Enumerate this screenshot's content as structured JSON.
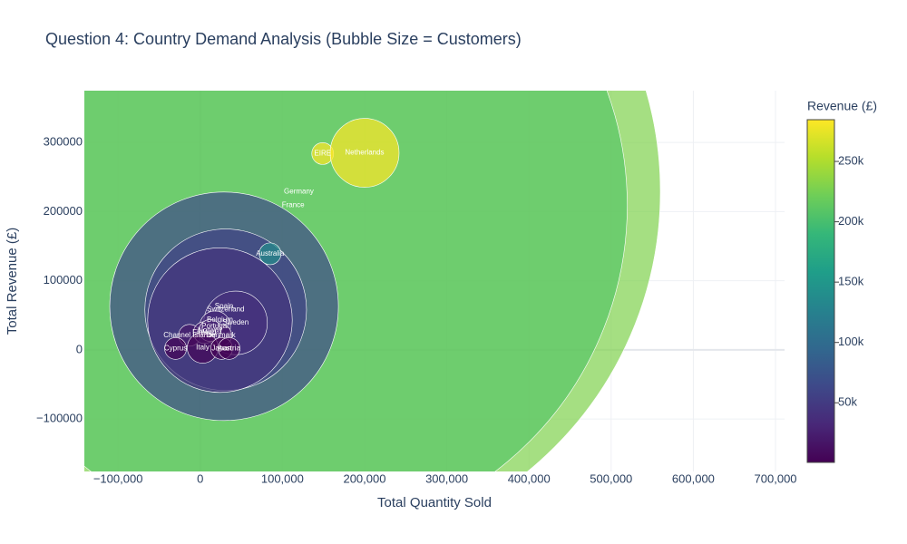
{
  "chart_data": {
    "type": "scatter",
    "title": "Question 4: Country Demand Analysis (Bubble Size = Customers)",
    "x_label": "Total Quantity Sold",
    "y_label": "Total Revenue (£)",
    "colorbar_title": "Revenue (£)",
    "labels": [
      "Germany",
      "France",
      "Spain",
      "Switzerland",
      "Belgium",
      "Sweden",
      "Portugal",
      "Channel Islands",
      "Denmark",
      "Finland",
      "Norway",
      "Italy",
      "Japan",
      "Cyprus",
      "Austria",
      "Australia",
      "EIRE",
      "Netherlands"
    ],
    "x": [
      120000,
      113000,
      29000,
      31000,
      24000,
      43000,
      18000,
      -13000,
      25000,
      5000,
      12000,
      3000,
      26000,
      -30000,
      35000,
      85000,
      149000,
      200000
    ],
    "y": [
      229000,
      209000,
      63000,
      58000,
      43000,
      39000,
      34000,
      21000,
      21000,
      25000,
      28000,
      3000,
      2000,
      2000,
      2000,
      139000,
      284000,
      285000
    ],
    "sizes": [
      110,
      94,
      11,
      5.5,
      4.4,
      0.85,
      0.2,
      0.1,
      0.1,
      0.1,
      0.1,
      0.2,
      0.1,
      0.1,
      0.1,
      0.1,
      0.1,
      1
    ],
    "xlim": [
      -141000,
      711000
    ],
    "ylim": [
      -176000,
      375000
    ],
    "xticks": [
      {
        "value": -100000,
        "label": "−100,000"
      },
      {
        "value": 0,
        "label": "0"
      },
      {
        "value": 100000,
        "label": "100,000"
      },
      {
        "value": 200000,
        "label": "200,000"
      },
      {
        "value": 300000,
        "label": "300,000"
      },
      {
        "value": 400000,
        "label": "400,000"
      },
      {
        "value": 500000,
        "label": "500,000"
      },
      {
        "value": 600000,
        "label": "600,000"
      },
      {
        "value": 700000,
        "label": "700,000"
      }
    ],
    "yticks": [
      {
        "value": -100000,
        "label": "−100000"
      },
      0,
      100000,
      200000,
      300000
    ],
    "clim": [
      600,
      284600
    ],
    "cticks": [
      {
        "value": 50000,
        "label": "50k"
      },
      {
        "value": 100000,
        "label": "100k"
      },
      {
        "value": 150000,
        "label": "150k"
      },
      {
        "value": 200000,
        "label": "200k"
      },
      {
        "value": 250000,
        "label": "250k"
      }
    ],
    "colorscale": "viridis",
    "grid": true
  }
}
